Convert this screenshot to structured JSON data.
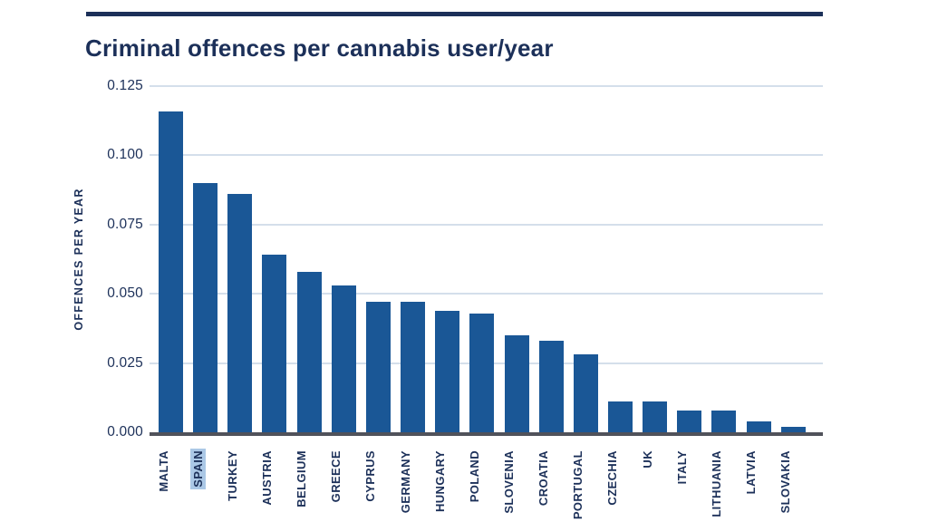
{
  "page": {
    "title": "Criminal offences per cannabis user/year"
  },
  "colors": {
    "background": "#ffffff",
    "navy_text": "#1c3059",
    "bar_blue": "#1a5796",
    "gridline": "#d4dfeb",
    "axis_line": "#50525a",
    "highlight_bg": "#abc8e6"
  },
  "chart_data": {
    "type": "bar",
    "title": "Criminal offences per cannabis user/year",
    "xlabel": "",
    "ylabel": "OFFENCES PER YEAR",
    "ylim": [
      0,
      0.125
    ],
    "yticks": [
      0,
      0.025,
      0.05,
      0.075,
      0.1,
      0.125
    ],
    "ytick_labels": [
      "0.000",
      "0.025",
      "0.050",
      "0.075",
      "0.100",
      "0.125"
    ],
    "grid": true,
    "legend": false,
    "categories": [
      "MALTA",
      "SPAIN",
      "TURKEY",
      "AUSTRIA",
      "BELGIUM",
      "GREECE",
      "CYPRUS",
      "GERMANY",
      "HUNGARY",
      "POLAND",
      "SLOVENIA",
      "CROATIA",
      "PORTUGAL",
      "CZECHIA",
      "UK",
      "ITALY",
      "LITHUANIA",
      "LATVIA",
      "SLOVAKIA"
    ],
    "values": [
      0.116,
      0.09,
      0.086,
      0.064,
      0.058,
      0.053,
      0.047,
      0.047,
      0.044,
      0.043,
      0.035,
      0.033,
      0.028,
      0.011,
      0.011,
      0.008,
      0.008,
      0.004,
      0.002
    ],
    "highlighted_category": "SPAIN"
  }
}
